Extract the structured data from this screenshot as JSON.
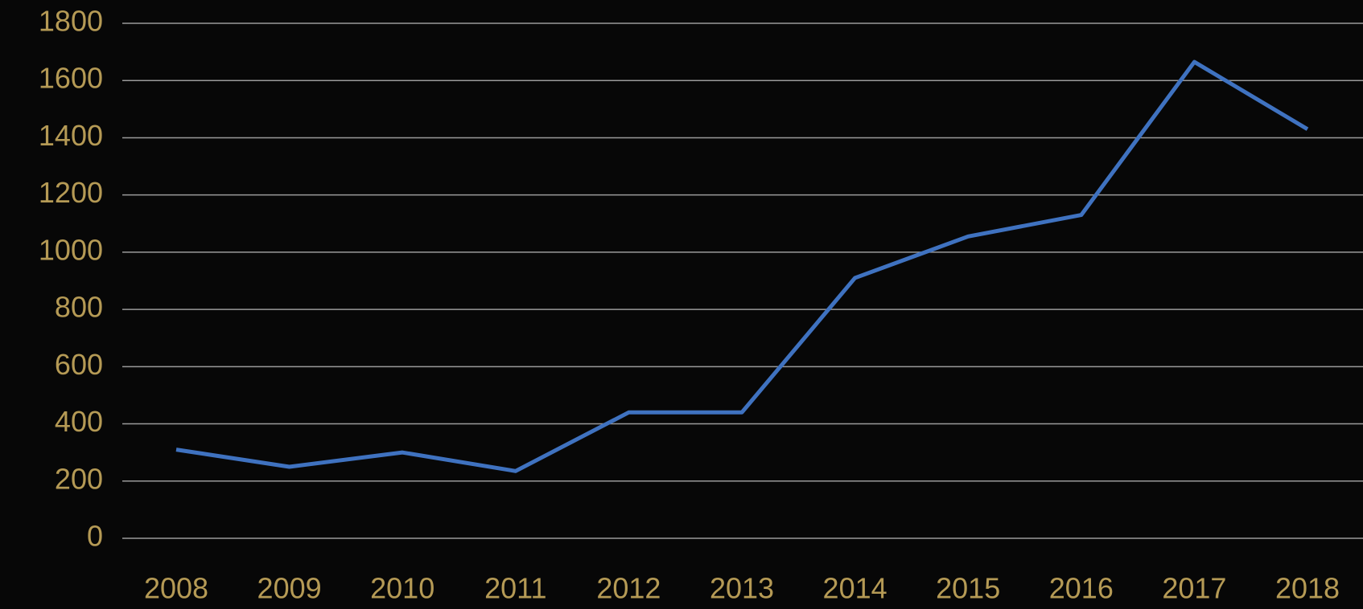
{
  "chart_data": {
    "type": "line",
    "categories": [
      "2008",
      "2009",
      "2010",
      "2011",
      "2012",
      "2013",
      "2014",
      "2015",
      "2016",
      "2017",
      "2018"
    ],
    "series": [
      {
        "color": "#3f72c0",
        "values": [
          310,
          250,
          300,
          235,
          440,
          440,
          910,
          1055,
          1130,
          1665,
          1430
        ]
      }
    ],
    "ylim": [
      0,
      1800
    ],
    "yticks": [
      0,
      200,
      400,
      600,
      800,
      1000,
      1200,
      1400,
      1600,
      1800
    ],
    "grid": true
  }
}
